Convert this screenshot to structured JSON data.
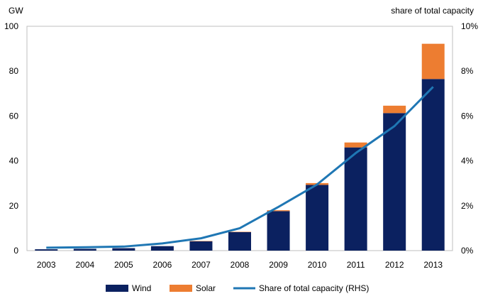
{
  "chart_data": {
    "type": "bar",
    "stacked": true,
    "categories": [
      "2003",
      "2004",
      "2005",
      "2006",
      "2007",
      "2008",
      "2009",
      "2010",
      "2011",
      "2012",
      "2013"
    ],
    "series": [
      {
        "name": "Wind",
        "type": "bar",
        "axis": "left",
        "color": "#0b2160",
        "values": [
          0.6,
          0.8,
          1.1,
          2.0,
          4.2,
          8.3,
          17.6,
          29.3,
          46.0,
          61.3,
          76.5
        ]
      },
      {
        "name": "Solar",
        "type": "bar",
        "axis": "left",
        "color": "#ed7d31",
        "values": [
          0,
          0,
          0,
          0,
          0.1,
          0.1,
          0.4,
          0.8,
          2.2,
          3.3,
          15.7
        ]
      },
      {
        "name": "Share of total capacity (RHS)",
        "type": "line",
        "axis": "right",
        "color": "#1f77b4",
        "values": [
          0.13,
          0.15,
          0.18,
          0.32,
          0.55,
          1.0,
          1.95,
          2.95,
          4.35,
          5.55,
          7.3
        ]
      }
    ],
    "left_axis": {
      "label": "GW",
      "min": 0,
      "max": 100,
      "ticks": [
        0,
        20,
        40,
        60,
        80,
        100
      ]
    },
    "right_axis": {
      "label": "share of total capacity",
      "min": 0,
      "max": 10,
      "unit": "%",
      "ticks": [
        "0%",
        "2%",
        "4%",
        "6%",
        "8%",
        "10%"
      ]
    },
    "grid": false,
    "legend": {
      "position": "bottom"
    }
  }
}
